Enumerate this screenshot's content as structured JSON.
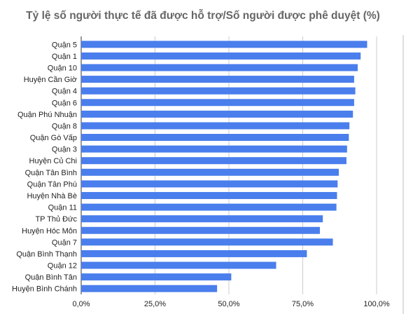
{
  "chart_data": {
    "type": "bar",
    "orientation": "horizontal",
    "title": "Tỷ lệ số người thực tế đã được hỗ trợ/Số người được phê duyệt (%)",
    "xlabel": "",
    "ylabel": "",
    "xlim": [
      0,
      100
    ],
    "x_ticks": [
      "0,0%",
      "25,0%",
      "50,0%",
      "75,0%",
      "100,0%"
    ],
    "grid": true,
    "legend": "none",
    "bar_color": "#4a7eed",
    "categories": [
      "Quận 5",
      "Quận 1",
      "Quận 10",
      "Huyện Cần Giờ",
      "Quận 4",
      "Quận 6",
      "Quận Phú Nhuận",
      "Quận 8",
      "Quận Gò Vấp",
      "Quận 3",
      "Huyện Củ Chi",
      "Quận Tân Bình",
      "Quận Tân Phú",
      "Huyện Nhà Bè",
      "Quận 11",
      "TP Thủ Đức",
      "Huyện Hóc Môn",
      "Quận 7",
      "Quận Bình Thạnh",
      "Quận 12",
      "Quận Bình Tân",
      "Huyện Bình Chánh"
    ],
    "values": [
      96.8,
      94.6,
      93.6,
      92.4,
      92.8,
      92.4,
      92.0,
      90.8,
      90.6,
      90.0,
      89.8,
      87.2,
      86.8,
      86.6,
      86.4,
      81.8,
      80.8,
      85.2,
      76.4,
      66.0,
      50.8,
      46.0
    ]
  }
}
